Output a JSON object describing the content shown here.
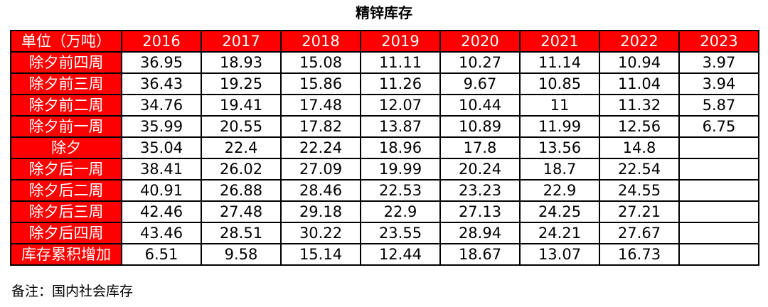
{
  "title": "精锌库存",
  "table": {
    "columns": [
      "单位（万吨）",
      "2016",
      "2017",
      "2018",
      "2019",
      "2020",
      "2021",
      "2022",
      "2023"
    ],
    "rows": [
      {
        "label": "除夕前四周",
        "values": [
          36.95,
          18.93,
          15.08,
          11.11,
          10.27,
          11.14,
          10.94,
          3.97
        ]
      },
      {
        "label": "除夕前三周",
        "values": [
          36.43,
          19.25,
          15.86,
          11.26,
          9.67,
          10.85,
          11.04,
          3.94
        ]
      },
      {
        "label": "除夕前二周",
        "values": [
          34.76,
          19.41,
          17.48,
          12.07,
          10.44,
          11,
          11.32,
          5.87
        ]
      },
      {
        "label": "除夕前一周",
        "values": [
          35.99,
          20.55,
          17.82,
          13.87,
          10.89,
          11.99,
          12.56,
          6.75
        ]
      },
      {
        "label": "除夕",
        "values": [
          35.04,
          22.4,
          22.24,
          18.96,
          17.8,
          13.56,
          14.8,
          null
        ]
      },
      {
        "label": "除夕后一周",
        "values": [
          38.41,
          26.02,
          27.09,
          19.99,
          20.24,
          18.7,
          22.54,
          null
        ]
      },
      {
        "label": "除夕后二周",
        "values": [
          40.91,
          26.88,
          28.46,
          22.53,
          23.23,
          22.9,
          24.55,
          null
        ]
      },
      {
        "label": "除夕后三周",
        "values": [
          42.46,
          27.48,
          29.18,
          22.9,
          27.13,
          24.25,
          27.21,
          null
        ]
      },
      {
        "label": "除夕后四周",
        "values": [
          43.46,
          28.51,
          30.22,
          23.55,
          28.94,
          24.21,
          27.67,
          null
        ]
      },
      {
        "label": "库存累积增加",
        "values": [
          6.51,
          9.58,
          15.14,
          12.44,
          18.67,
          13.07,
          16.73,
          null
        ]
      }
    ]
  },
  "note": "备注：国内社会库存"
}
